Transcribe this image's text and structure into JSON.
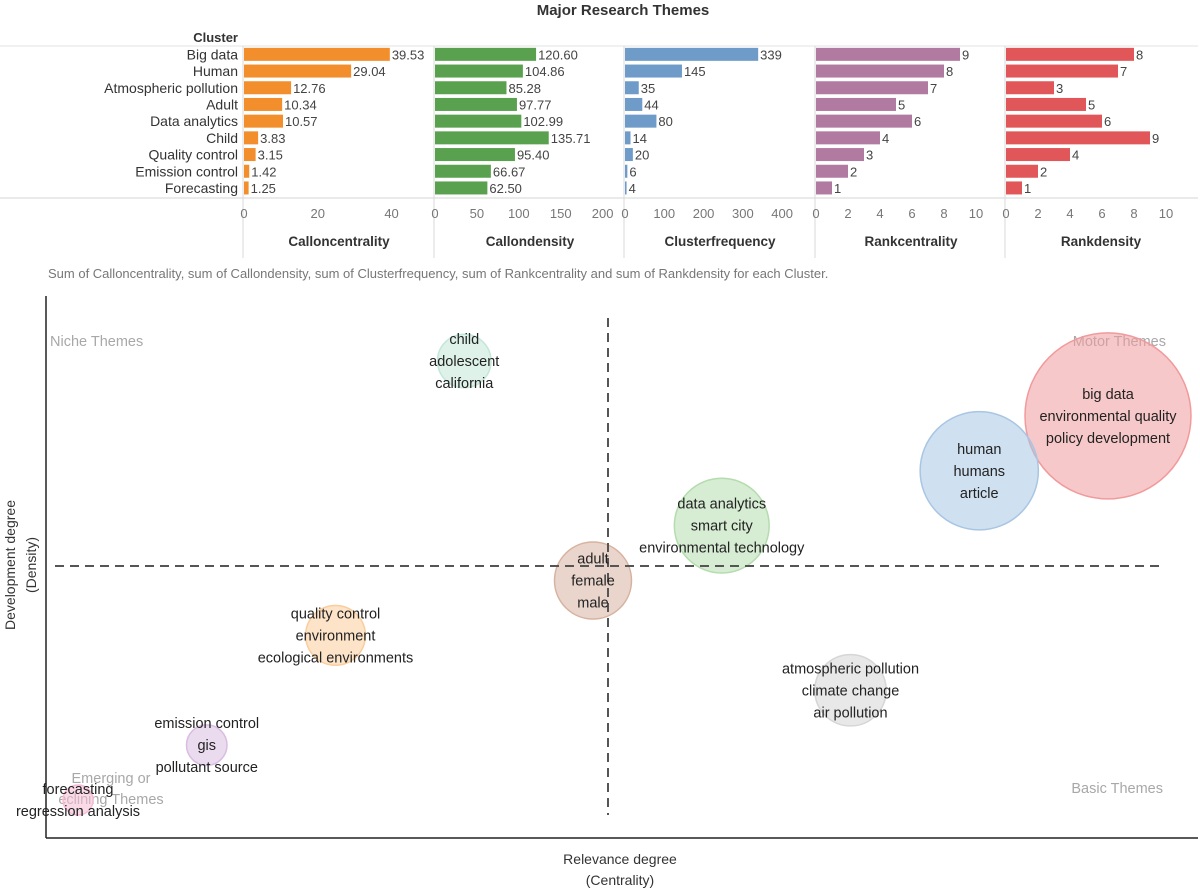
{
  "chart_data": [
    {
      "type": "bar",
      "orientation": "horizontal",
      "title": "Major Research Themes",
      "category_header": "Cluster",
      "categories": [
        "Big data",
        "Human",
        "Atmospheric pollution",
        "Adult",
        "Data analytics",
        "Child",
        "Quality control",
        "Emission control",
        "Forecasting"
      ],
      "series": [
        {
          "name": "Calloncentrality",
          "color": "#f28e2b",
          "xlim": [
            0,
            45
          ],
          "ticks": [
            0,
            20,
            40
          ],
          "values": [
            39.53,
            29.04,
            12.76,
            10.34,
            10.57,
            3.83,
            3.15,
            1.42,
            1.25
          ],
          "labels": [
            "39.53",
            "29.04",
            "12.76",
            "10.34",
            "10.57",
            "3.83",
            "3.15",
            "1.42",
            "1.25"
          ]
        },
        {
          "name": "Callondensity",
          "color": "#59a14f",
          "xlim": [
            0,
            210
          ],
          "ticks": [
            0,
            50,
            100,
            150,
            200
          ],
          "values": [
            120.6,
            104.86,
            85.28,
            97.77,
            102.99,
            135.71,
            95.4,
            66.67,
            62.5
          ],
          "labels": [
            "120.60",
            "104.86",
            "85.28",
            "97.77",
            "102.99",
            "135.71",
            "95.40",
            "66.67",
            "62.50"
          ]
        },
        {
          "name": "Clusterfrequency",
          "color": "#6f9bc9",
          "xlim": [
            0,
            420
          ],
          "ticks": [
            0,
            100,
            200,
            300,
            400
          ],
          "values": [
            339,
            145,
            35,
            44,
            80,
            14,
            20,
            6,
            4
          ],
          "labels": [
            "339",
            "145",
            "35",
            "44",
            "80",
            "14",
            "20",
            "6",
            "4"
          ]
        },
        {
          "name": "Rankcentrality",
          "color": "#b07aa1",
          "xlim": [
            0,
            10.5
          ],
          "ticks": [
            0,
            2,
            4,
            6,
            8,
            10
          ],
          "values": [
            9,
            8,
            7,
            5,
            6,
            4,
            3,
            2,
            1
          ],
          "labels": [
            "9",
            "8",
            "7",
            "5",
            "6",
            "4",
            "3",
            "2",
            "1"
          ]
        },
        {
          "name": "Rankdensity",
          "color": "#e15759",
          "xlim": [
            0,
            10.5
          ],
          "ticks": [
            0,
            2,
            4,
            6,
            8,
            10
          ],
          "values": [
            8,
            7,
            3,
            5,
            6,
            9,
            4,
            2,
            1
          ],
          "labels": [
            "8",
            "7",
            "3",
            "5",
            "6",
            "9",
            "4",
            "2",
            "1"
          ]
        }
      ],
      "caption": "Sum of Calloncentrality, sum of Callondensity, sum of Clusterfrequency, sum of Rankcentrality and sum of Rankdensity for each Cluster."
    },
    {
      "type": "scatter",
      "subtype": "bubble strategic diagram",
      "xlabel": "Relevance degree",
      "xlabel_sub": "(Centrality)",
      "ylabel": "Development degree",
      "ylabel_sub": "(Density)",
      "x_range": [
        0,
        10.5
      ],
      "y_range": [
        0,
        10.5
      ],
      "divider_x": 5,
      "divider_y": 5,
      "quadrant_labels": {
        "top_left": "Niche Themes",
        "top_right": "Motor Themes",
        "bottom_right": "Basic Themes",
        "bottom_left_line1": "Emerging or",
        "bottom_left_line2": "eclining Themes"
      },
      "points": [
        {
          "cluster": "Big data",
          "x": 9,
          "y": 8,
          "size": 339,
          "color": "#f19a9c",
          "label_lines": [
            "big data",
            "environmental quality",
            "policy development"
          ]
        },
        {
          "cluster": "Human",
          "x": 8,
          "y": 7,
          "size": 145,
          "color": "#a8c6e4",
          "label_lines": [
            "human",
            "humans",
            "article"
          ]
        },
        {
          "cluster": "Atmospheric pollution",
          "x": 7,
          "y": 3,
          "size": 35,
          "color": "#d6d6d6",
          "label_lines": [
            "atmospheric pollution",
            "climate change",
            "air pollution"
          ]
        },
        {
          "cluster": "Adult",
          "x": 5,
          "y": 5,
          "size": 44,
          "color": "#d7b2a0",
          "label_lines": [
            "adult",
            "female",
            "male"
          ]
        },
        {
          "cluster": "Data analytics",
          "x": 6,
          "y": 6,
          "size": 80,
          "color": "#b4dcae",
          "label_lines": [
            "data analytics",
            "smart city",
            "environmental technology"
          ]
        },
        {
          "cluster": "Child",
          "x": 4,
          "y": 9,
          "size": 14,
          "color": "#c3e7d8",
          "label_lines": [
            "child",
            "adolescent",
            "california"
          ]
        },
        {
          "cluster": "Quality control",
          "x": 3,
          "y": 4,
          "size": 20,
          "color": "#fbcd9c",
          "label_lines": [
            "quality control",
            "environment",
            "ecological environments"
          ]
        },
        {
          "cluster": "Emission control",
          "x": 2,
          "y": 2,
          "size": 6,
          "color": "#d9bde2",
          "label_lines": [
            "emission control",
            "gis",
            "pollutant source"
          ]
        },
        {
          "cluster": "Forecasting",
          "x": 1,
          "y": 1,
          "size": 4,
          "color": "#f7bcd6",
          "label_lines": [
            "forecasting",
            "regression analysis"
          ]
        }
      ]
    }
  ]
}
